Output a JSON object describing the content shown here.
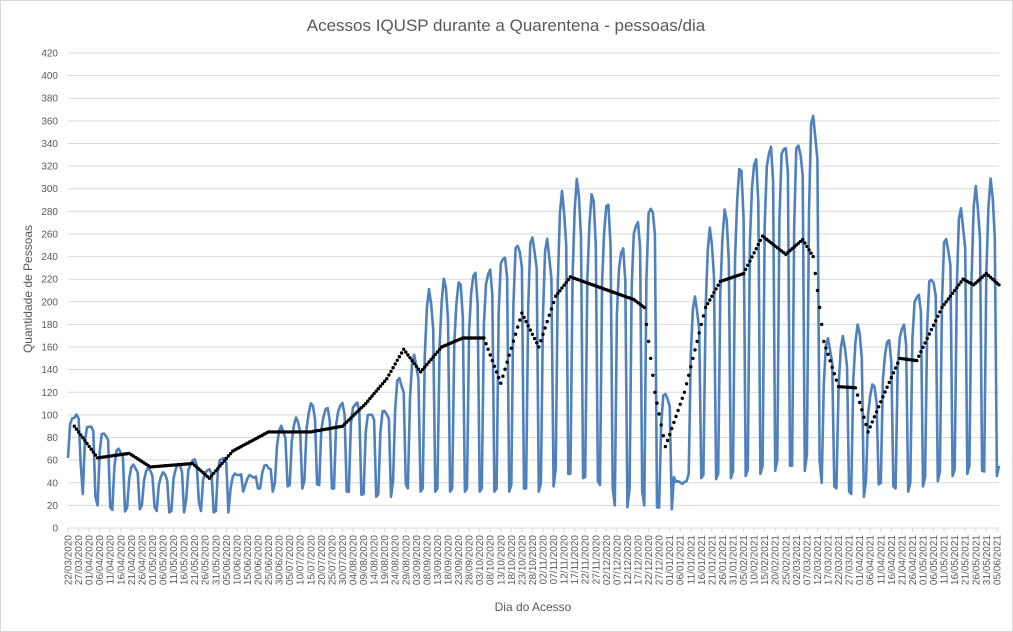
{
  "chart_data": {
    "type": "line",
    "title": "Acessos IQUSP durante a Quarentena  - pessoas/dia",
    "xlabel": "Dia do Acesso",
    "ylabel": "Quantidade de Pessoas",
    "ylim": [
      0,
      420
    ],
    "yticks": [
      0,
      20,
      40,
      60,
      80,
      100,
      120,
      140,
      160,
      180,
      200,
      220,
      240,
      260,
      280,
      300,
      320,
      340,
      360,
      380,
      400,
      420
    ],
    "grid": true,
    "legend": "none",
    "x_start": "22/03/2020",
    "x_end": "06/06/2021",
    "x_tick_labels": [
      "22/03/2020",
      "27/03/2020",
      "01/04/2020",
      "06/04/2020",
      "11/04/2020",
      "16/04/2020",
      "21/04/2020",
      "26/04/2020",
      "01/05/2020",
      "06/05/2020",
      "11/05/2020",
      "16/05/2020",
      "21/05/2020",
      "26/05/2020",
      "31/05/2020",
      "05/06/2020",
      "10/06/2020",
      "15/06/2020",
      "20/06/2020",
      "25/06/2020",
      "30/06/2020",
      "05/07/2020",
      "10/07/2020",
      "15/07/2020",
      "20/07/2020",
      "25/07/2020",
      "30/07/2020",
      "04/08/2020",
      "09/08/2020",
      "14/08/2020",
      "19/08/2020",
      "24/08/2020",
      "29/08/2020",
      "03/09/2020",
      "08/09/2020",
      "13/09/2020",
      "18/09/2020",
      "23/09/2020",
      "28/09/2020",
      "03/10/2020",
      "08/10/2020",
      "13/10/2020",
      "18/10/2020",
      "23/10/2020",
      "28/10/2020",
      "02/11/2020",
      "07/11/2020",
      "12/11/2020",
      "17/11/2020",
      "22/11/2020",
      "27/11/2020",
      "02/12/2020",
      "07/12/2020",
      "12/12/2020",
      "17/12/2020",
      "22/12/2020",
      "27/12/2020",
      "01/01/2021",
      "06/01/2021",
      "11/01/2021",
      "16/01/2021",
      "21/01/2021",
      "26/01/2021",
      "31/01/2021",
      "05/02/2021",
      "10/02/2021",
      "15/02/2021",
      "20/02/2021",
      "25/02/2021",
      "02/03/2021",
      "07/03/2021",
      "12/03/2021",
      "17/03/2021",
      "22/03/2021",
      "27/03/2021",
      "01/04/2021",
      "06/04/2021",
      "11/04/2021",
      "16/04/2021",
      "21/04/2021",
      "26/04/2021",
      "01/05/2021",
      "06/05/2021",
      "11/05/2021",
      "16/05/2021",
      "21/05/2021",
      "26/05/2021",
      "31/05/2021",
      "05/06/2021"
    ],
    "weekly_series": {
      "name": "",
      "color": "#4f81bd",
      "week_start": "22/03/2020",
      "weekday_levels": [
        100,
        92,
        85,
        70,
        55,
        52,
        48,
        56,
        60,
        52,
        63,
        48,
        46,
        55,
        88,
        95,
        108,
        105,
        110,
        112,
        103,
        105,
        132,
        150,
        205,
        215,
        215,
        225,
        230,
        245,
        255,
        258,
        252,
        290,
        300,
        290,
        285,
        248,
        275,
        290,
        120,
        40,
        200,
        258,
        275,
        315,
        325,
        340,
        345,
        345,
        365,
        165,
        165,
        175,
        125,
        165,
        180,
        210,
        225,
        258,
        280,
        295,
        300,
        310,
        305
      ],
      "weekend_levels": [
        62,
        30,
        20,
        16,
        18,
        20,
        15,
        15,
        25,
        15,
        15,
        35,
        38,
        35,
        40,
        38,
        42,
        38,
        35,
        32,
        30,
        30,
        42,
        35,
        35,
        35,
        35,
        35,
        35,
        35,
        38,
        35,
        40,
        52,
        48,
        45,
        38,
        20,
        35,
        20,
        18,
        45,
        48,
        47,
        48,
        50,
        52,
        55,
        60,
        55,
        65,
        40,
        35,
        30,
        42,
        40,
        35,
        40,
        45,
        50,
        52,
        55,
        50,
        55,
        48
      ]
    },
    "moving_average": {
      "name": "",
      "style": "dotted",
      "color": "#000000",
      "points": [
        {
          "x": "25/03/2020",
          "y": 90
        },
        {
          "x": "05/04/2020",
          "y": 62
        },
        {
          "x": "20/04/2020",
          "y": 66
        },
        {
          "x": "30/04/2020",
          "y": 54
        },
        {
          "x": "20/05/2020",
          "y": 57
        },
        {
          "x": "28/05/2020",
          "y": 44
        },
        {
          "x": "08/06/2020",
          "y": 68
        },
        {
          "x": "25/06/2020",
          "y": 85
        },
        {
          "x": "15/07/2020",
          "y": 85
        },
        {
          "x": "30/07/2020",
          "y": 90
        },
        {
          "x": "10/08/2020",
          "y": 110
        },
        {
          "x": "20/08/2020",
          "y": 132
        },
        {
          "x": "28/08/2020",
          "y": 158
        },
        {
          "x": "05/09/2020",
          "y": 138
        },
        {
          "x": "15/09/2020",
          "y": 160
        },
        {
          "x": "25/09/2020",
          "y": 168
        },
        {
          "x": "05/10/2020",
          "y": 168
        },
        {
          "x": "13/10/2020",
          "y": 128
        },
        {
          "x": "23/10/2020",
          "y": 190
        },
        {
          "x": "31/10/2020",
          "y": 160
        },
        {
          "x": "08/11/2020",
          "y": 205
        },
        {
          "x": "15/11/2020",
          "y": 222
        },
        {
          "x": "30/11/2020",
          "y": 212
        },
        {
          "x": "15/12/2020",
          "y": 202
        },
        {
          "x": "20/12/2020",
          "y": 195
        },
        {
          "x": "25/12/2020",
          "y": 120
        },
        {
          "x": "30/12/2020",
          "y": 72
        },
        {
          "x": "08/01/2021",
          "y": 120
        },
        {
          "x": "18/01/2021",
          "y": 195
        },
        {
          "x": "25/01/2021",
          "y": 218
        },
        {
          "x": "05/02/2021",
          "y": 225
        },
        {
          "x": "14/02/2021",
          "y": 258
        },
        {
          "x": "25/02/2021",
          "y": 242
        },
        {
          "x": "05/03/2021",
          "y": 255
        },
        {
          "x": "10/03/2021",
          "y": 240
        },
        {
          "x": "15/03/2021",
          "y": 165
        },
        {
          "x": "22/03/2021",
          "y": 125
        },
        {
          "x": "30/03/2021",
          "y": 124
        },
        {
          "x": "05/04/2021",
          "y": 85
        },
        {
          "x": "12/04/2021",
          "y": 116
        },
        {
          "x": "20/04/2021",
          "y": 150
        },
        {
          "x": "28/04/2021",
          "y": 148
        },
        {
          "x": "10/05/2021",
          "y": 195
        },
        {
          "x": "20/05/2021",
          "y": 220
        },
        {
          "x": "25/05/2021",
          "y": 215
        },
        {
          "x": "31/05/2021",
          "y": 225
        },
        {
          "x": "06/06/2021",
          "y": 215
        }
      ]
    }
  }
}
